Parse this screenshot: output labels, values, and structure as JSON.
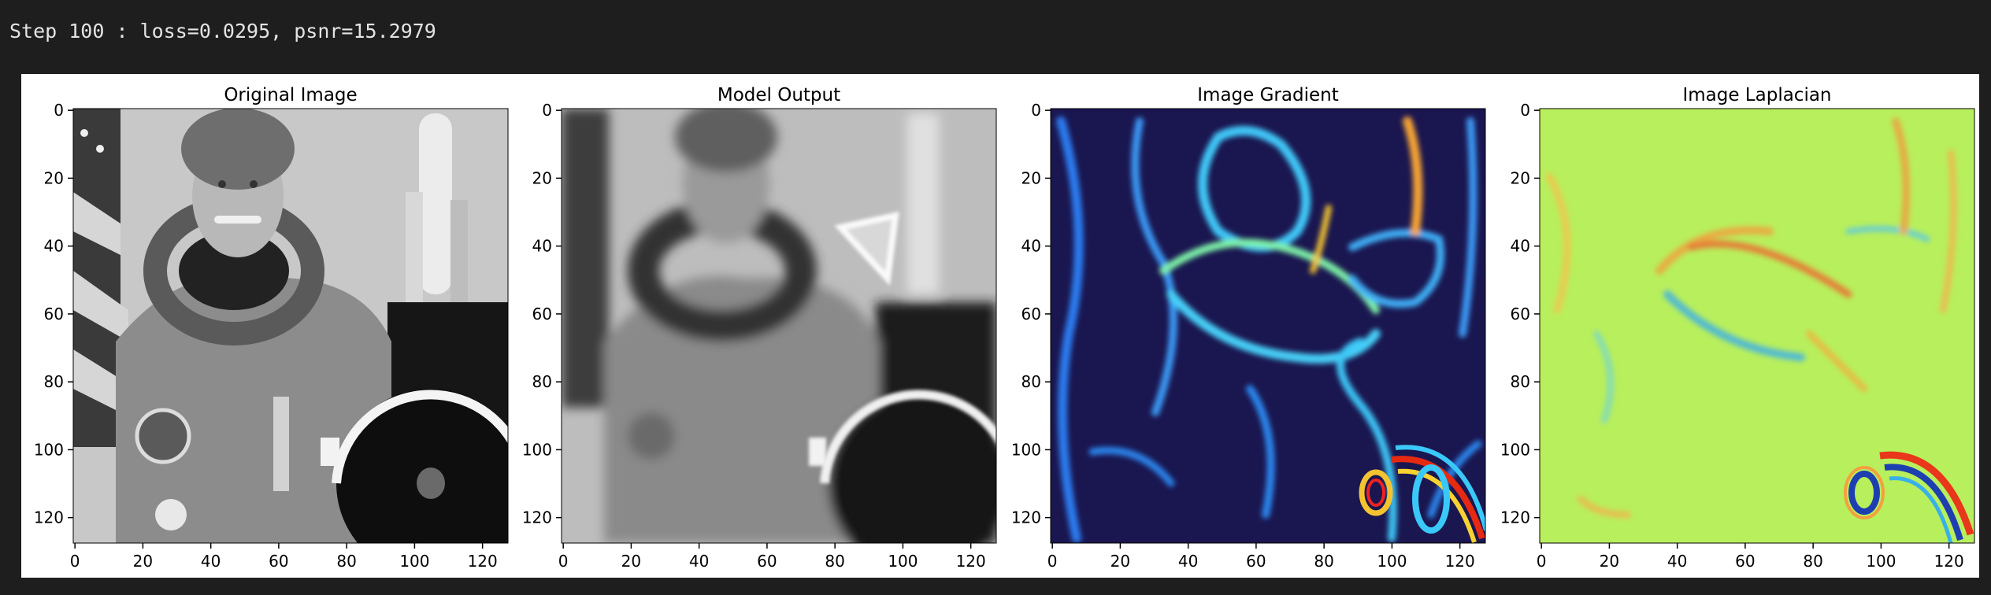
{
  "output": {
    "log_line": "Step 100 : loss=0.0295, psnr=15.2979"
  },
  "figure": {
    "panels": [
      {
        "title": "Original Image",
        "cmap": "gray",
        "image": "astronaut"
      },
      {
        "title": "Model Output",
        "cmap": "gray",
        "image": "blurred-reconstruction"
      },
      {
        "title": "Image Gradient",
        "cmap": "jet",
        "image": "gradient-magnitude"
      },
      {
        "title": "Image Laplacian",
        "cmap": "jet",
        "image": "laplacian"
      }
    ],
    "x_ticks": [
      "0",
      "20",
      "40",
      "60",
      "80",
      "100",
      "120"
    ],
    "y_ticks": [
      "0",
      "20",
      "40",
      "60",
      "80",
      "100",
      "120"
    ]
  }
}
